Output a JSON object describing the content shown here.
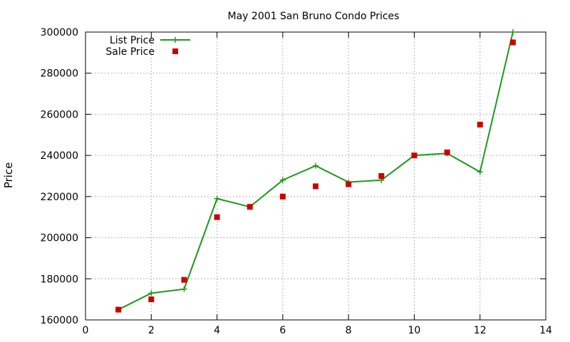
{
  "chart_data": {
    "type": "line",
    "title": "May 2001 San Bruno Condo Prices",
    "xlabel": "",
    "ylabel": "Price",
    "xlim": [
      0,
      14
    ],
    "ylim": [
      160000,
      300000
    ],
    "xticks": [
      0,
      2,
      4,
      6,
      8,
      10,
      12,
      14
    ],
    "yticks": [
      160000,
      180000,
      200000,
      220000,
      240000,
      260000,
      280000,
      300000
    ],
    "grid": true,
    "legend_position": "top-left",
    "series": [
      {
        "name": "List Price",
        "style": "line-with-plus",
        "color": "#1a9b1a",
        "x": [
          1,
          2,
          3,
          4,
          5,
          6,
          7,
          8,
          9,
          10,
          11,
          12,
          13
        ],
        "y": [
          165000,
          173000,
          175000,
          219000,
          215000,
          228000,
          235000,
          227000,
          228000,
          240000,
          241000,
          232000,
          300000
        ]
      },
      {
        "name": "Sale Price",
        "style": "square-points",
        "color": "#cc0000",
        "x": [
          1,
          2,
          3,
          4,
          5,
          6,
          7,
          8,
          9,
          10,
          11,
          12,
          13
        ],
        "y": [
          165000,
          170000,
          179500,
          210000,
          215000,
          220000,
          225000,
          226000,
          230000,
          240000,
          241500,
          255000,
          295000
        ]
      }
    ]
  }
}
